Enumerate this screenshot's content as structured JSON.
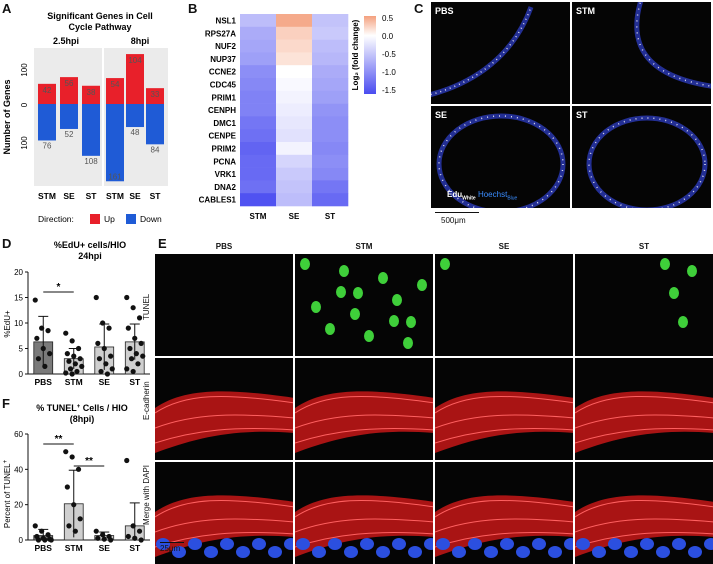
{
  "panels": {
    "A": "A",
    "B": "B",
    "C": "C",
    "D": "D",
    "E": "E",
    "F": "F"
  },
  "panelA": {
    "title_line1": "Significant Genes in Cell",
    "title_line2": "Cycle Pathway",
    "ylabel": "Number of Genes",
    "yticks": [
      "100",
      "0",
      "100"
    ],
    "legend_title": "Direction:",
    "legend": [
      {
        "label": "Up",
        "color": "#e8202a"
      },
      {
        "label": "Down",
        "color": "#1f5bd6"
      }
    ],
    "chart_data": {
      "type": "bar",
      "groups": [
        "2.5hpi",
        "8hpi"
      ],
      "categories": [
        "STM",
        "SE",
        "ST"
      ],
      "series": [
        {
          "name": "Up",
          "values_2_5hpi": [
            42,
            56,
            38
          ],
          "values_8hpi": [
            54,
            104,
            33
          ]
        },
        {
          "name": "Down",
          "values_2_5hpi": [
            76,
            52,
            108
          ],
          "values_8hpi": [
            161,
            48,
            84
          ]
        }
      ],
      "ylim": [
        -170,
        110
      ]
    }
  },
  "panelB": {
    "genes": [
      "NSL1",
      "RPS27A",
      "NUF2",
      "NUP37",
      "CCNE2",
      "CDC45",
      "PRIM1",
      "CENPH",
      "DMC1",
      "CENPE",
      "PRIM2",
      "PCNA",
      "VRK1",
      "DNA2",
      "CABLES1"
    ],
    "columns": [
      "STM",
      "SE",
      "ST"
    ],
    "colorbar_label": "Log₂ (fold change)",
    "colorbar_ticks": [
      "0.5",
      "0.0",
      "-0.5",
      "-1.0",
      "-1.5"
    ],
    "chart_data": {
      "type": "heatmap",
      "rows": [
        "NSL1",
        "RPS27A",
        "NUF2",
        "NUP37",
        "CCNE2",
        "CDC45",
        "PRIM1",
        "CENPH",
        "DMC1",
        "CENPE",
        "PRIM2",
        "PCNA",
        "VRK1",
        "DNA2",
        "CABLES1"
      ],
      "cols": [
        "STM",
        "SE",
        "ST"
      ],
      "values": [
        [
          -0.55,
          0.45,
          -0.5
        ],
        [
          -0.7,
          0.25,
          -0.45
        ],
        [
          -0.75,
          0.2,
          -0.55
        ],
        [
          -0.8,
          0.15,
          -0.6
        ],
        [
          -0.95,
          0.0,
          -0.7
        ],
        [
          -1.0,
          -0.05,
          -0.75
        ],
        [
          -1.05,
          -0.1,
          -0.8
        ],
        [
          -1.05,
          -0.15,
          -0.9
        ],
        [
          -1.15,
          -0.2,
          -0.95
        ],
        [
          -1.2,
          -0.25,
          -0.95
        ],
        [
          -1.3,
          -0.1,
          -1.0
        ],
        [
          -1.25,
          -0.35,
          -0.95
        ],
        [
          -1.25,
          -0.45,
          -1.0
        ],
        [
          -1.2,
          -0.5,
          -1.15
        ],
        [
          -1.45,
          -0.55,
          -1.25
        ]
      ],
      "range": [
        -1.5,
        0.5
      ]
    }
  },
  "panelC": {
    "labels": [
      "PBS",
      "STM",
      "SE",
      "ST"
    ],
    "stain_edu": "Edu",
    "stain_edu_sub": "White",
    "stain_hoechst": "Hoechst",
    "stain_hoechst_sub": "Blue",
    "scale": "500μm"
  },
  "panelD": {
    "title_line1": "%EdU+ cells/HIO",
    "title_line2": "24hpi",
    "ylabel": "%EdU+",
    "sig": "*",
    "chart_data": {
      "type": "bar",
      "categories": [
        "PBS",
        "STM",
        "SE",
        "ST"
      ],
      "values": [
        6.3,
        3.0,
        5.3,
        6.3
      ],
      "errors": [
        5.0,
        2.0,
        4.5,
        3.5
      ],
      "points": [
        [
          14.5,
          9,
          8.5,
          7,
          5,
          4,
          3,
          1.5
        ],
        [
          8,
          6.5,
          5,
          4,
          3.5,
          3,
          2.5,
          2,
          1.5,
          1,
          0.5,
          0.2,
          0
        ],
        [
          15,
          10,
          9,
          6,
          5,
          3.5,
          3,
          2,
          1,
          0.5,
          0
        ],
        [
          15,
          13,
          11,
          9,
          7,
          6,
          5,
          4,
          3.5,
          3,
          2,
          1,
          0.5
        ]
      ],
      "ylim": [
        0,
        20
      ],
      "yticks": [
        0,
        5,
        10,
        15,
        20
      ]
    }
  },
  "panelE": {
    "columns": [
      "PBS",
      "STM",
      "SE",
      "ST"
    ],
    "rows": [
      "TUNEL",
      "E-cadherin",
      "Merge with DAPI"
    ],
    "scale": "25μm"
  },
  "panelF": {
    "title_line1": "% TUNEL",
    "title_sup": "+",
    "title_line1b": " Cells / HIO",
    "title_line2": "(8hpi)",
    "ylabel": "Percent of TUNEL",
    "ylabel_sup": "+",
    "sig1": "**",
    "sig2": "**",
    "chart_data": {
      "type": "bar",
      "categories": [
        "PBS",
        "STM",
        "SE",
        "ST"
      ],
      "values": [
        2.5,
        20.5,
        2.5,
        8
      ],
      "errors": [
        3.5,
        19,
        2,
        13
      ],
      "points": [
        [
          8,
          5,
          3,
          2,
          1,
          0.5,
          0,
          0,
          0
        ],
        [
          50,
          47,
          40,
          30,
          20,
          12,
          8,
          5
        ],
        [
          5,
          3,
          2,
          1,
          0.5,
          0
        ],
        [
          45,
          8,
          5,
          2,
          1,
          0
        ]
      ],
      "ylim": [
        0,
        60
      ],
      "yticks": [
        0,
        20,
        40,
        60
      ]
    }
  }
}
